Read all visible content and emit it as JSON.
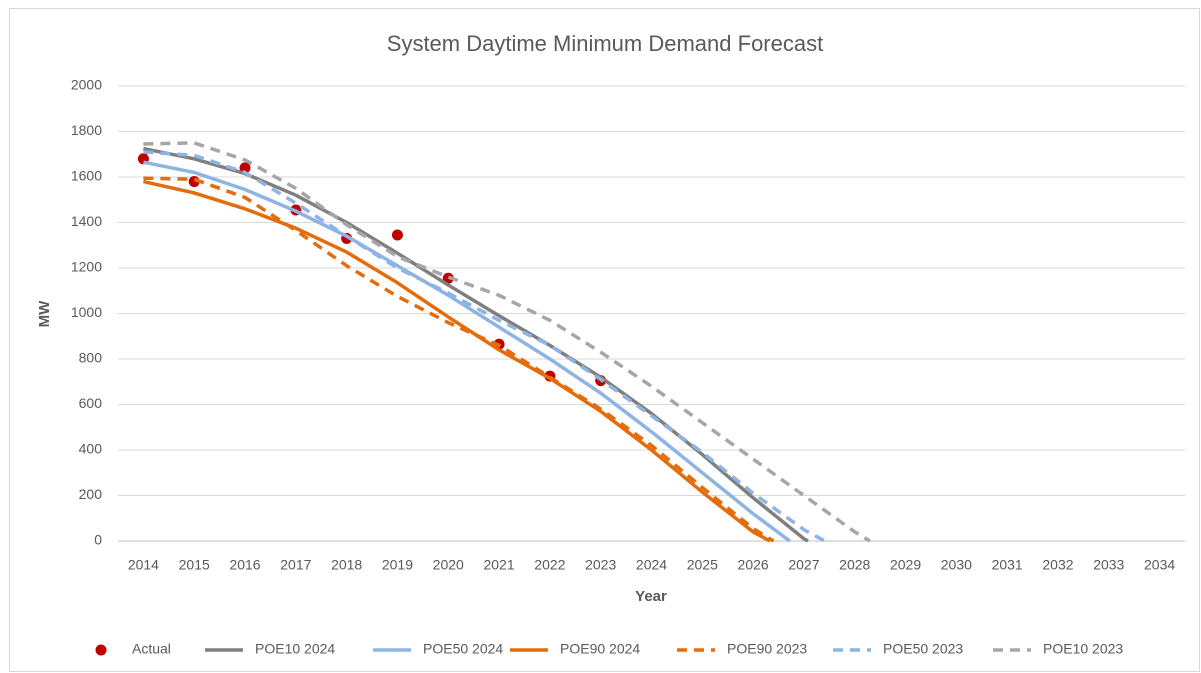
{
  "chart_data": {
    "type": "line",
    "title": "System Daytime Minimum Demand Forecast",
    "x_label": "Year",
    "y_label": "MW",
    "xlim": [
      2013.5,
      2034.5
    ],
    "xticks": [
      2014,
      2015,
      2016,
      2017,
      2018,
      2019,
      2020,
      2021,
      2022,
      2023,
      2024,
      2025,
      2026,
      2027,
      2028,
      2029,
      2030,
      2031,
      2032,
      2033,
      2034
    ],
    "ylim": [
      0,
      2000
    ],
    "yticks": [
      0,
      200,
      400,
      600,
      800,
      1000,
      1200,
      1400,
      1600,
      1800,
      2000
    ],
    "grid": true,
    "legend": "bottom",
    "series": [
      {
        "name": "Actual",
        "color": "#c00000",
        "mode": "markers",
        "x": [
          2014,
          2015,
          2016,
          2017,
          2018,
          2019,
          2020,
          2021,
          2022,
          2023
        ],
        "values": [
          1680,
          1580,
          1640,
          1455,
          1330,
          1345,
          1155,
          865,
          725,
          705
        ]
      },
      {
        "name": "POE10 2024",
        "color": "#7f7f7f",
        "mode": "line",
        "dashed": false,
        "x": [
          2014,
          2015,
          2016,
          2017,
          2018,
          2019,
          2020,
          2021,
          2022,
          2023,
          2024,
          2025,
          2026,
          2027,
          2027.08
        ],
        "values": [
          1725,
          1680,
          1615,
          1520,
          1400,
          1265,
          1125,
          990,
          860,
          720,
          560,
          380,
          190,
          10,
          0
        ]
      },
      {
        "name": "POE50 2024",
        "color": "#8eb4e3",
        "mode": "line",
        "dashed": false,
        "x": [
          2014,
          2015,
          2016,
          2017,
          2018,
          2019,
          2020,
          2021,
          2022,
          2023,
          2024,
          2025,
          2026,
          2026.72
        ],
        "values": [
          1665,
          1620,
          1545,
          1450,
          1340,
          1210,
          1080,
          940,
          800,
          650,
          480,
          300,
          120,
          0
        ]
      },
      {
        "name": "POE90 2024",
        "color": "#e46c0a",
        "mode": "line",
        "dashed": false,
        "x": [
          2014,
          2015,
          2016,
          2017,
          2018,
          2019,
          2020,
          2021,
          2022,
          2023,
          2024,
          2025,
          2026,
          2026.33
        ],
        "values": [
          1580,
          1530,
          1460,
          1375,
          1270,
          1135,
          985,
          840,
          715,
          570,
          400,
          215,
          40,
          0
        ]
      },
      {
        "name": "POE90 2023",
        "color": "#e46c0a",
        "mode": "line",
        "dashed": true,
        "x": [
          2014,
          2015,
          2016,
          2017,
          2018,
          2019,
          2020,
          2021,
          2022,
          2023,
          2024,
          2025,
          2026,
          2026.4
        ],
        "values": [
          1595,
          1590,
          1510,
          1365,
          1210,
          1075,
          960,
          860,
          720,
          580,
          420,
          235,
          55,
          0
        ]
      },
      {
        "name": "POE50 2023",
        "color": "#8eb4e3",
        "mode": "line",
        "dashed": true,
        "x": [
          2014,
          2015,
          2016,
          2017,
          2018,
          2019,
          2020,
          2021,
          2022,
          2023,
          2024,
          2025,
          2026,
          2027,
          2027.41
        ],
        "values": [
          1710,
          1695,
          1620,
          1485,
          1340,
          1200,
          1090,
          970,
          860,
          710,
          550,
          390,
          210,
          50,
          0
        ]
      },
      {
        "name": "POE10 2023",
        "color": "#a6a6a6",
        "mode": "line",
        "dashed": true,
        "x": [
          2014,
          2015,
          2016,
          2017,
          2018,
          2019,
          2020,
          2021,
          2022,
          2023,
          2024,
          2025,
          2026,
          2027,
          2028,
          2028.3
        ],
        "values": [
          1745,
          1750,
          1675,
          1550,
          1390,
          1250,
          1160,
          1080,
          970,
          830,
          680,
          520,
          360,
          200,
          40,
          0
        ]
      }
    ]
  }
}
